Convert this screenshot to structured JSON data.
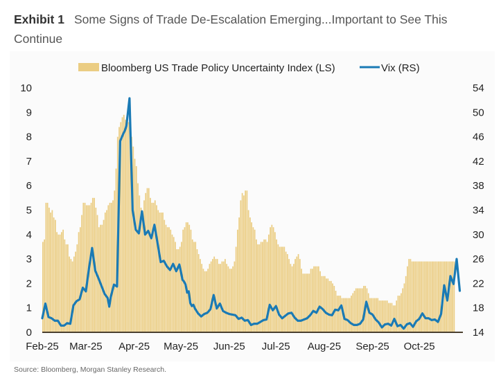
{
  "title": {
    "label": "Exhibit 1",
    "text": "Some Signs of Trade De-Escalation Emerging...Important to See This Continue"
  },
  "source": "Source: Bloomberg, Morgan Stanley Research.",
  "colors": {
    "bars": "#ebcd83",
    "line": "#1a7ab5",
    "axis": "#4a3f2e"
  },
  "chart_data": {
    "type": "bar+line",
    "title": "Some Signs of Trade De-Escalation Emerging...Important to See This Continue",
    "legend": [
      "Bloomberg US Trade Policy Uncertainty Index (LS)",
      "Vix (RS)"
    ],
    "legend_position": "top-center",
    "grid": false,
    "x_tick_labels": [
      "Feb-25",
      "Mar-25",
      "Apr-25",
      "May-25",
      "Jun-25",
      "Jul-25",
      "Aug-25",
      "Sep-25",
      "Oct-25"
    ],
    "y_left": {
      "label": "",
      "ticks": [
        0,
        1,
        2,
        3,
        4,
        5,
        6,
        7,
        8,
        9,
        10
      ],
      "range": [
        0,
        10
      ]
    },
    "y_right": {
      "label": "",
      "ticks": [
        14,
        18,
        22,
        26,
        30,
        34,
        38,
        42,
        46,
        50,
        54
      ],
      "range": [
        14,
        54
      ]
    },
    "x_range_days": [
      0,
      270
    ],
    "month_start_day": [
      0,
      28,
      59,
      89,
      120,
      150,
      181,
      212,
      242
    ],
    "series": [
      {
        "name": "Bloomberg US Trade Policy Uncertainty Index (LS)",
        "type": "bar",
        "axis": "left",
        "x_day": [
          0,
          1,
          2,
          3,
          4,
          5,
          6,
          7,
          8,
          9,
          10,
          11,
          12,
          13,
          14,
          15,
          16,
          17,
          18,
          19,
          20,
          21,
          22,
          23,
          24,
          25,
          26,
          27,
          28,
          29,
          30,
          31,
          32,
          33,
          34,
          35,
          36,
          37,
          38,
          39,
          40,
          41,
          42,
          43,
          44,
          45,
          46,
          47,
          48,
          49,
          50,
          51,
          52,
          53,
          54,
          55,
          56,
          57,
          58,
          59,
          60,
          61,
          62,
          63,
          64,
          65,
          66,
          67,
          68,
          69,
          70,
          71,
          72,
          73,
          74,
          75,
          76,
          77,
          78,
          79,
          80,
          81,
          82,
          83,
          84,
          85,
          86,
          87,
          88,
          89,
          90,
          91,
          92,
          93,
          94,
          95,
          96,
          97,
          98,
          99,
          100,
          101,
          102,
          103,
          104,
          105,
          106,
          107,
          108,
          109,
          110,
          111,
          112,
          113,
          114,
          115,
          116,
          117,
          118,
          119,
          120,
          121,
          122,
          123,
          124,
          125,
          126,
          127,
          128,
          129,
          130,
          131,
          132,
          133,
          134,
          135,
          136,
          137,
          138,
          139,
          140,
          141,
          142,
          143,
          144,
          145,
          146,
          147,
          148,
          149,
          150,
          151,
          152,
          153,
          154,
          155,
          156,
          157,
          158,
          159,
          160,
          161,
          162,
          163,
          164,
          165,
          166,
          167,
          168,
          169,
          170,
          171,
          172,
          173,
          174,
          175,
          176,
          177,
          178,
          179,
          180,
          181,
          182,
          183,
          184,
          185,
          186,
          187,
          188,
          189,
          190,
          191,
          192,
          193,
          194,
          195,
          196,
          197,
          198,
          199,
          200,
          201,
          202,
          203,
          204,
          205,
          206,
          207,
          208,
          209,
          210,
          211,
          212,
          213,
          214,
          215,
          216,
          217,
          218,
          219,
          220,
          221,
          222,
          223,
          224,
          225,
          226,
          227,
          228,
          229,
          230,
          231,
          232,
          233,
          234,
          235,
          236,
          237,
          238,
          239,
          240,
          241,
          242,
          243,
          244,
          245,
          246,
          247,
          248,
          249,
          250,
          251,
          252,
          253,
          254,
          255,
          256,
          257,
          258,
          259,
          260,
          261,
          262,
          263,
          264,
          265,
          266,
          267,
          268,
          269
        ],
        "values": [
          3.7,
          3.8,
          5.3,
          5.3,
          5.1,
          4.9,
          5.0,
          4.7,
          4.6,
          4.1,
          4.0,
          4.0,
          4.1,
          4.2,
          3.8,
          3.6,
          3.6,
          3.1,
          3.0,
          2.9,
          3.1,
          3.3,
          3.6,
          4.1,
          4.3,
          4.8,
          5.3,
          5.3,
          5.2,
          5.2,
          5.2,
          5.3,
          5.5,
          5.5,
          5.1,
          4.8,
          4.3,
          4.4,
          4.4,
          4.6,
          4.9,
          5.0,
          5.2,
          5.3,
          5.3,
          5.4,
          5.8,
          6.7,
          8.0,
          8.4,
          8.6,
          8.8,
          8.9,
          8.7,
          8.7,
          8.6,
          8.3,
          8.0,
          7.6,
          7.1,
          6.8,
          6.1,
          5.6,
          5.1,
          4.9,
          5.4,
          5.7,
          5.9,
          5.9,
          5.5,
          5.3,
          5.3,
          5.4,
          5.2,
          5.0,
          4.9,
          4.9,
          4.9,
          4.6,
          4.4,
          4.3,
          4.3,
          4.2,
          4.0,
          3.9,
          3.7,
          3.4,
          3.4,
          3.5,
          3.7,
          4.2,
          4.3,
          4.5,
          4.5,
          4.4,
          4.2,
          3.8,
          3.7,
          3.7,
          3.4,
          3.2,
          3.0,
          2.8,
          2.6,
          2.5,
          2.5,
          2.6,
          2.8,
          2.9,
          3.0,
          3.1,
          3.0,
          3.0,
          2.8,
          2.8,
          2.9,
          2.9,
          3.0,
          2.8,
          2.7,
          2.6,
          2.6,
          2.7,
          2.9,
          3.5,
          4.2,
          4.7,
          5.4,
          5.7,
          5.6,
          5.8,
          5.8,
          5.0,
          4.7,
          4.5,
          4.3,
          4.2,
          3.8,
          3.6,
          3.6,
          3.7,
          3.7,
          3.8,
          3.8,
          3.7,
          4.0,
          4.3,
          4.4,
          4.3,
          4.1,
          3.8,
          3.6,
          3.5,
          3.5,
          3.5,
          3.5,
          3.3,
          3.2,
          3.0,
          2.8,
          2.7,
          2.8,
          3.0,
          3.1,
          3.2,
          3.0,
          2.6,
          2.4,
          2.4,
          2.4,
          2.4,
          2.4,
          2.6,
          2.6,
          2.7,
          2.7,
          2.7,
          2.7,
          2.5,
          2.3,
          2.3,
          2.3,
          2.2,
          2.2,
          2.1,
          2.1,
          2.0,
          1.9,
          1.7,
          1.5,
          1.5,
          1.5,
          1.4,
          1.4,
          1.4,
          1.4,
          1.4,
          1.4,
          1.5,
          1.6,
          1.7,
          1.8,
          1.8,
          1.8,
          1.8,
          1.8,
          1.9,
          1.9,
          1.8,
          1.6,
          1.4,
          1.4,
          1.4,
          1.4,
          1.4,
          1.4,
          1.3,
          1.3,
          1.3,
          1.3,
          1.3,
          1.3,
          1.2,
          1.2,
          1.2,
          1.1,
          1.1,
          1.3,
          1.5,
          1.5,
          1.6,
          1.8,
          2.0,
          2.3,
          2.7,
          3.0,
          3.0,
          2.9,
          2.9,
          2.9,
          2.9,
          2.9,
          2.9,
          2.9,
          2.9,
          2.9,
          2.9,
          2.9,
          2.9,
          2.9,
          2.9,
          2.9,
          2.9,
          2.9,
          2.9,
          2.9,
          2.9,
          2.9,
          2.9,
          2.9,
          2.9,
          2.9,
          2.9,
          2.9,
          2.9
        ]
      },
      {
        "name": "Vix (RS)",
        "type": "line",
        "axis": "right",
        "x_day": [
          0,
          2,
          4,
          6,
          8,
          10,
          12,
          14,
          16,
          18,
          20,
          22,
          24,
          26,
          28,
          30,
          32,
          34,
          36,
          38,
          40,
          42,
          43,
          44,
          46,
          48,
          50,
          52,
          53,
          54,
          56,
          58,
          60,
          62,
          64,
          66,
          68,
          70,
          72,
          74,
          76,
          78,
          80,
          82,
          84,
          86,
          88,
          89,
          90,
          91,
          92,
          93,
          94,
          95,
          96,
          97,
          98,
          100,
          102,
          104,
          106,
          108,
          110,
          112,
          114,
          116,
          118,
          120,
          122,
          124,
          126,
          128,
          130,
          132,
          134,
          136,
          138,
          140,
          142,
          144,
          146,
          148,
          150,
          152,
          154,
          156,
          158,
          160,
          162,
          164,
          166,
          168,
          170,
          172,
          174,
          176,
          178,
          180,
          182,
          184,
          186,
          188,
          190,
          192,
          194,
          196,
          198,
          200,
          202,
          204,
          206,
          208,
          210,
          212,
          214,
          216,
          218,
          220,
          222,
          224,
          226,
          228,
          230,
          232,
          234,
          236,
          238,
          240,
          242,
          244,
          246,
          248,
          250,
          252,
          254,
          256,
          258,
          260,
          262,
          264,
          266,
          268
        ],
        "values": [
          16.3,
          18.7,
          16.5,
          16.3,
          15.9,
          15.9,
          15.1,
          15.1,
          15.5,
          15.4,
          18.4,
          19.1,
          19.4,
          21.3,
          20.7,
          24.5,
          27.8,
          24.1,
          22.9,
          21.6,
          20.3,
          19.6,
          18.2,
          19.8,
          21.8,
          21.5,
          45.3,
          46.5,
          47.0,
          47.8,
          52.3,
          34.0,
          30.8,
          30.2,
          33.8,
          30.0,
          30.6,
          29.4,
          31.6,
          28.6,
          25.5,
          25.7,
          24.8,
          24.2,
          25.2,
          24.0,
          25.1,
          23.9,
          22.6,
          22.3,
          21.8,
          20.5,
          20.7,
          18.8,
          18.3,
          18.5,
          17.9,
          17.1,
          16.6,
          17.0,
          17.2,
          17.8,
          20.1,
          17.9,
          18.7,
          17.5,
          17.2,
          17.0,
          16.9,
          16.8,
          16.2,
          16.4,
          15.9,
          16.0,
          15.2,
          15.4,
          15.4,
          15.7,
          16.0,
          16.1,
          18.5,
          17.6,
          18.3,
          16.9,
          16.3,
          16.7,
          17.1,
          17.2,
          16.4,
          15.9,
          15.9,
          16.1,
          16.3,
          16.8,
          17.5,
          17.2,
          18.2,
          17.8,
          17.2,
          16.9,
          16.8,
          17.7,
          17.6,
          18.4,
          16.2,
          16.0,
          15.5,
          15.2,
          15.2,
          15.4,
          16.1,
          19.0,
          17.2,
          16.9,
          16.1,
          15.6,
          14.8,
          15.3,
          15.4,
          15.1,
          16.2,
          15.0,
          15.2,
          14.6,
          15.3,
          15.5,
          14.9,
          15.8,
          16.2,
          17.1,
          16.3,
          16.3,
          16.0,
          16.1,
          15.7,
          17.0,
          21.7,
          19.2,
          23.2,
          21.9,
          26.0,
          20.8
        ]
      }
    ]
  }
}
